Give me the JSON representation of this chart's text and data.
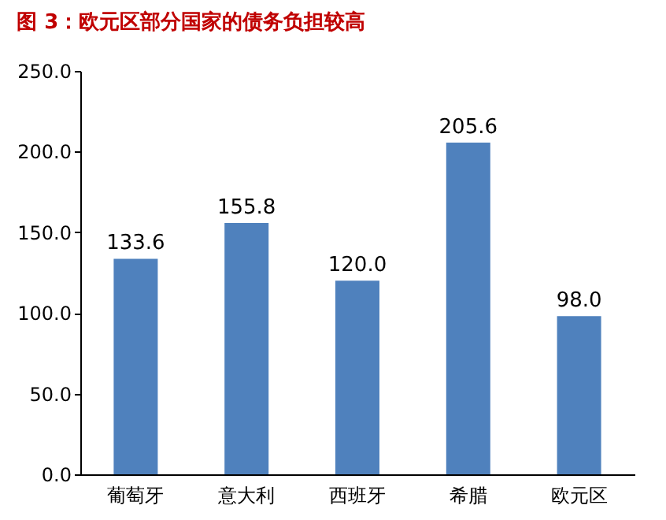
{
  "chart_data": {
    "type": "bar",
    "title": "图 3：欧元区部分国家的债务负担较高",
    "categories": [
      "葡萄牙",
      "意大利",
      "西班牙",
      "希腊",
      "欧元区"
    ],
    "values": [
      133.6,
      155.8,
      120.0,
      205.6,
      98.0
    ],
    "value_labels": [
      "133.6",
      "155.8",
      "120.0",
      "205.6",
      "98.0"
    ],
    "color": "#4f81bd",
    "ylim": [
      0,
      250
    ],
    "yticks": [
      {
        "value": 0,
        "label": "0.0"
      },
      {
        "value": 50,
        "label": "50.0"
      },
      {
        "value": 100,
        "label": "100.0"
      },
      {
        "value": 150,
        "label": "150.0"
      },
      {
        "value": 200,
        "label": "200.0"
      },
      {
        "value": 250,
        "label": "250.0"
      }
    ],
    "grid": false
  }
}
